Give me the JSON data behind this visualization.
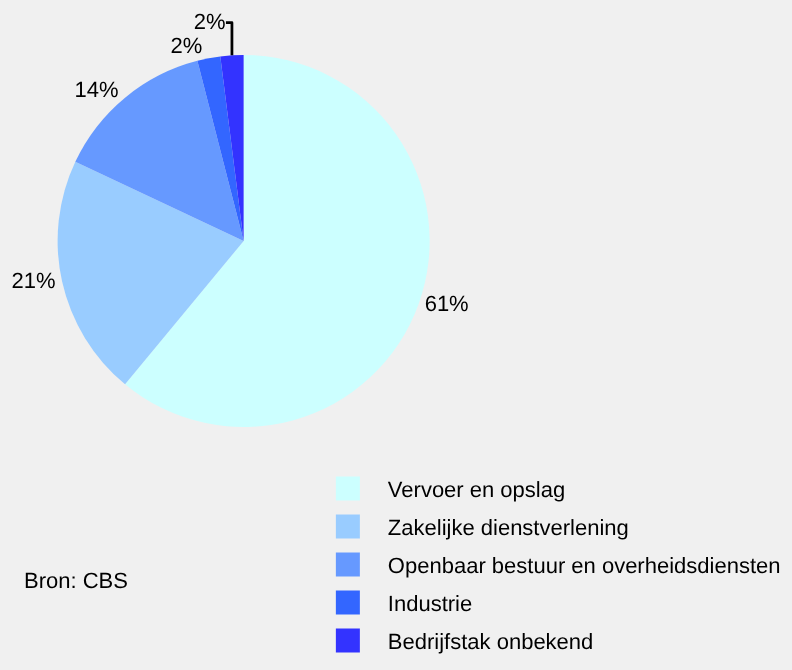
{
  "chart_data": {
    "type": "pie",
    "categories": [
      "Vervoer en opslag",
      "Zakelijke dienstverlening",
      "Openbaar bestuur en overheidsdiensten",
      "Industrie",
      "Bedrijfstak onbekend"
    ],
    "values": [
      61,
      21,
      14,
      2,
      2
    ],
    "colors": [
      "#ccffff",
      "#99ccff",
      "#6699ff",
      "#3366ff",
      "#3333ff"
    ],
    "value_labels": [
      "61%",
      "21%",
      "14%",
      "2%",
      "2%"
    ],
    "legend": "bottom right",
    "annotations": [
      "Bron: CBS"
    ]
  }
}
